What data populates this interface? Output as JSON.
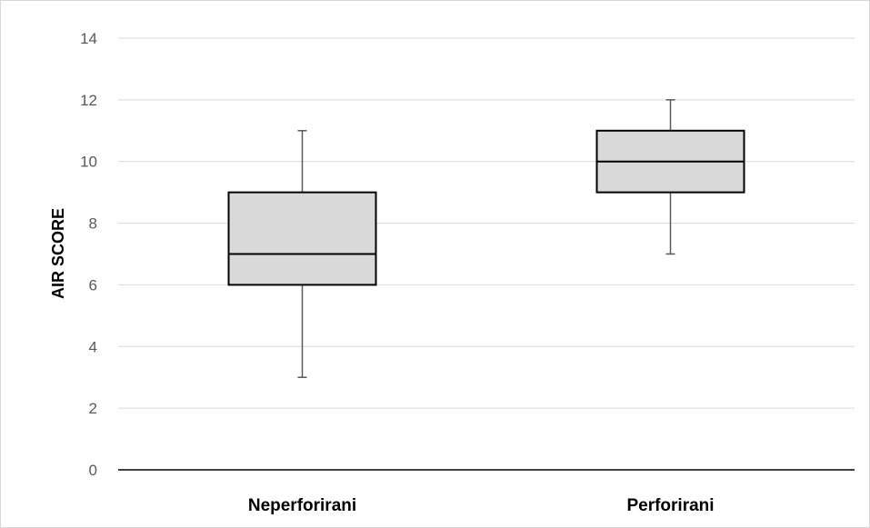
{
  "chart_data": {
    "type": "boxplot",
    "title": "",
    "xlabel": "",
    "ylabel": "AIR SCORE",
    "ylim": [
      0,
      14
    ],
    "yticks": [
      0,
      2,
      4,
      6,
      8,
      10,
      12,
      14
    ],
    "grid": true,
    "categories": [
      "Neperforirani",
      "Perforirani"
    ],
    "boxes": [
      {
        "category": "Neperforirani",
        "min": 3,
        "q1": 6,
        "median": 7,
        "q3": 9,
        "max": 11
      },
      {
        "category": "Perforirani",
        "min": 7,
        "q1": 9,
        "median": 10,
        "q3": 11,
        "max": 12
      }
    ],
    "colors": {
      "box_fill": "#d9d9d9",
      "box_stroke": "#000000",
      "whisker": "#595959",
      "grid": "#d9d9d9",
      "axis": "#000000"
    }
  }
}
